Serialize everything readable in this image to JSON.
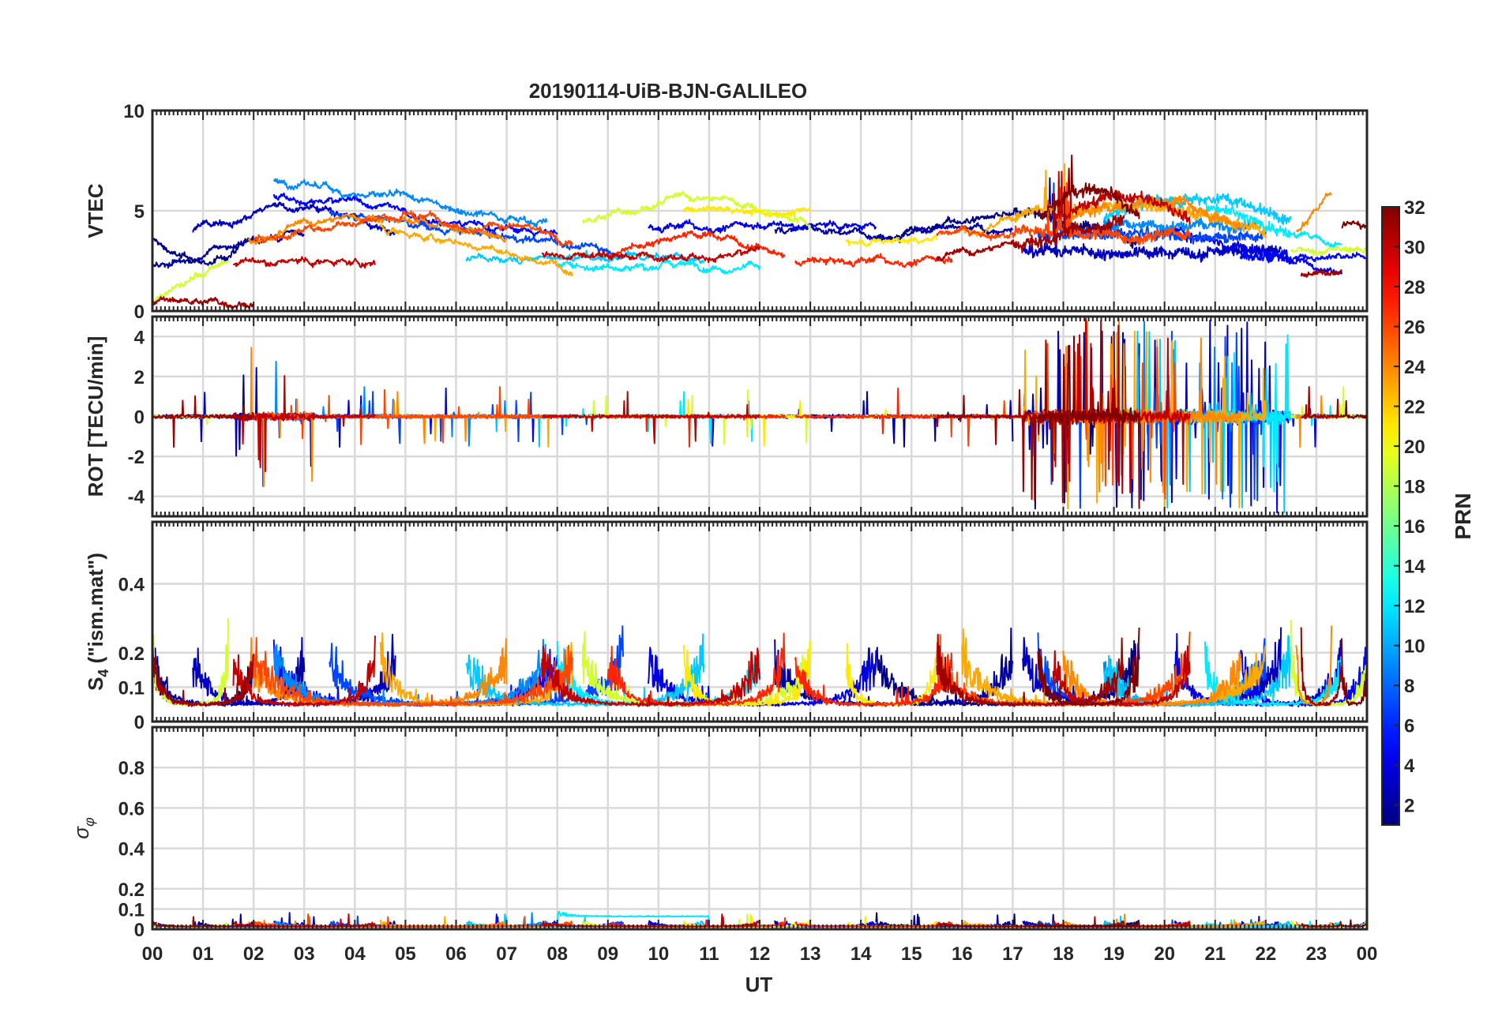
{
  "chart_data": {
    "type": "line",
    "title": "20190114-UiB-BJN-GALILEO",
    "xlabel": "UT",
    "x_ticks": [
      "00",
      "01",
      "02",
      "03",
      "04",
      "05",
      "06",
      "07",
      "08",
      "09",
      "10",
      "11",
      "12",
      "13",
      "14",
      "15",
      "16",
      "17",
      "18",
      "19",
      "20",
      "21",
      "22",
      "23",
      "00"
    ],
    "xlim": [
      0,
      24
    ],
    "grid": true,
    "panels": [
      {
        "ylabel": "VTEC",
        "ylim": [
          0,
          10
        ],
        "yticks": [
          "0",
          "5",
          "10"
        ],
        "ytick_values": [
          0,
          5,
          10
        ]
      },
      {
        "ylabel": "ROT [TECU/min]",
        "ylim": [
          -5,
          5
        ],
        "yticks": [
          "-4",
          "-2",
          "0",
          "2",
          "4"
        ],
        "ytick_values": [
          -4,
          -2,
          0,
          2,
          4
        ]
      },
      {
        "ylabel_main": "S",
        "ylabel_sub": "4",
        "ylabel_rest": " (\"ism.mat\")",
        "ylim": [
          0,
          0.58
        ],
        "yticks": [
          "0",
          "0.1",
          "0.2",
          "0.4"
        ],
        "ytick_values": [
          0,
          0.1,
          0.2,
          0.4
        ]
      },
      {
        "ylabel_main": "σ",
        "ylabel_sub": "φ",
        "ylim": [
          0,
          1
        ],
        "yticks": [
          "0",
          "0.1",
          "0.2",
          "0.4",
          "0.6",
          "0.8"
        ],
        "ytick_values": [
          0,
          0.1,
          0.2,
          0.4,
          0.6,
          0.8
        ]
      }
    ],
    "colorbar": {
      "label": "PRN",
      "range": [
        1,
        32
      ],
      "ticks": [
        "2",
        "4",
        "6",
        "8",
        "10",
        "12",
        "14",
        "16",
        "18",
        "20",
        "22",
        "24",
        "26",
        "28",
        "30",
        "32"
      ],
      "tick_values": [
        2,
        4,
        6,
        8,
        10,
        12,
        14,
        16,
        18,
        20,
        22,
        24,
        26,
        28,
        30,
        32
      ],
      "colormap": "jet"
    },
    "series": [
      {
        "prn": 1,
        "passes": [
          [
            0.0,
            2.0,
            3.6,
            "dip"
          ],
          [
            14.3,
            19.5,
            3.5,
            "hump"
          ]
        ]
      },
      {
        "prn": 2,
        "passes": [
          [
            0.0,
            3.0,
            3.2,
            "rise"
          ],
          [
            12.3,
            17.0,
            4.0,
            "flat"
          ]
        ]
      },
      {
        "prn": 3,
        "passes": [
          [
            0.8,
            4.8,
            4.0,
            "hump"
          ],
          [
            17.2,
            22.3,
            3.0,
            "flat"
          ]
        ]
      },
      {
        "prn": 4,
        "passes": [
          [
            9.8,
            14.3,
            4.2,
            "flat"
          ],
          [
            20.2,
            23.5,
            3.0,
            "fall"
          ]
        ]
      },
      {
        "prn": 5,
        "passes": [
          [
            2.4,
            8.0,
            4.8,
            "fall"
          ],
          [
            21.5,
            24.0,
            2.8,
            "flat"
          ]
        ]
      },
      {
        "prn": 7,
        "passes": [
          [
            3.5,
            9.3,
            3.9,
            "fall"
          ],
          [
            17.5,
            22.0,
            3.8,
            "flat"
          ]
        ]
      },
      {
        "prn": 9,
        "passes": [
          [
            2.4,
            7.8,
            5.5,
            "fall"
          ],
          [
            18.8,
            21.8,
            4.3,
            "flat"
          ]
        ]
      },
      {
        "prn": 11,
        "passes": [
          [
            6.2,
            10.9,
            2.6,
            "flat"
          ],
          [
            18.8,
            22.5,
            4.6,
            "hump"
          ]
        ]
      },
      {
        "prn": 12,
        "passes": [
          [
            8.0,
            12.0,
            2.3,
            "flat"
          ],
          [
            20.8,
            23.5,
            4.2,
            "fall"
          ]
        ]
      },
      {
        "prn": 19,
        "passes": [
          [
            0.0,
            1.5,
            1.5,
            "rise"
          ],
          [
            8.5,
            13.0,
            4.4,
            "hump"
          ],
          [
            22.5,
            24.0,
            3.0,
            "flat"
          ]
        ]
      },
      {
        "prn": 21,
        "passes": [
          [
            10.5,
            13.0,
            5.0,
            "flat"
          ],
          [
            13.7,
            15.5,
            3.5,
            "flat"
          ]
        ]
      },
      {
        "prn": 23,
        "passes": [
          [
            4.5,
            8.3,
            3.2,
            "fall"
          ],
          [
            16.0,
            22.0,
            4.0,
            "hump"
          ]
        ]
      },
      {
        "prn": 24,
        "passes": [
          [
            1.9,
            7.0,
            3.5,
            "hump"
          ],
          [
            18.0,
            21.5,
            4.3,
            "hump"
          ],
          [
            22.6,
            23.3,
            5.0,
            "rise"
          ]
        ]
      },
      {
        "prn": 26,
        "passes": [
          [
            2.0,
            8.3,
            3.5,
            "hump"
          ],
          [
            15.5,
            20.5,
            3.8,
            "flat"
          ]
        ]
      },
      {
        "prn": 27,
        "passes": [
          [
            9.0,
            12.5,
            2.7,
            "hump"
          ],
          [
            12.7,
            15.8,
            2.5,
            "flat"
          ]
        ]
      },
      {
        "prn": 30,
        "passes": [
          [
            1.6,
            4.4,
            2.4,
            "flat"
          ],
          [
            7.7,
            12.0,
            2.8,
            "flat"
          ],
          [
            17.8,
            20.5,
            4.5,
            "hump"
          ]
        ]
      },
      {
        "prn": 31,
        "passes": [
          [
            0.0,
            2.0,
            0.5,
            "flat"
          ],
          [
            15.5,
            19.2,
            3.5,
            "rise"
          ],
          [
            22.7,
            23.5,
            1.8,
            "flat"
          ]
        ]
      },
      {
        "prn": 32,
        "passes": [
          [
            17.5,
            19.5,
            4.8,
            "hump"
          ],
          [
            23.5,
            24.0,
            4.2,
            "flat"
          ]
        ]
      }
    ]
  }
}
